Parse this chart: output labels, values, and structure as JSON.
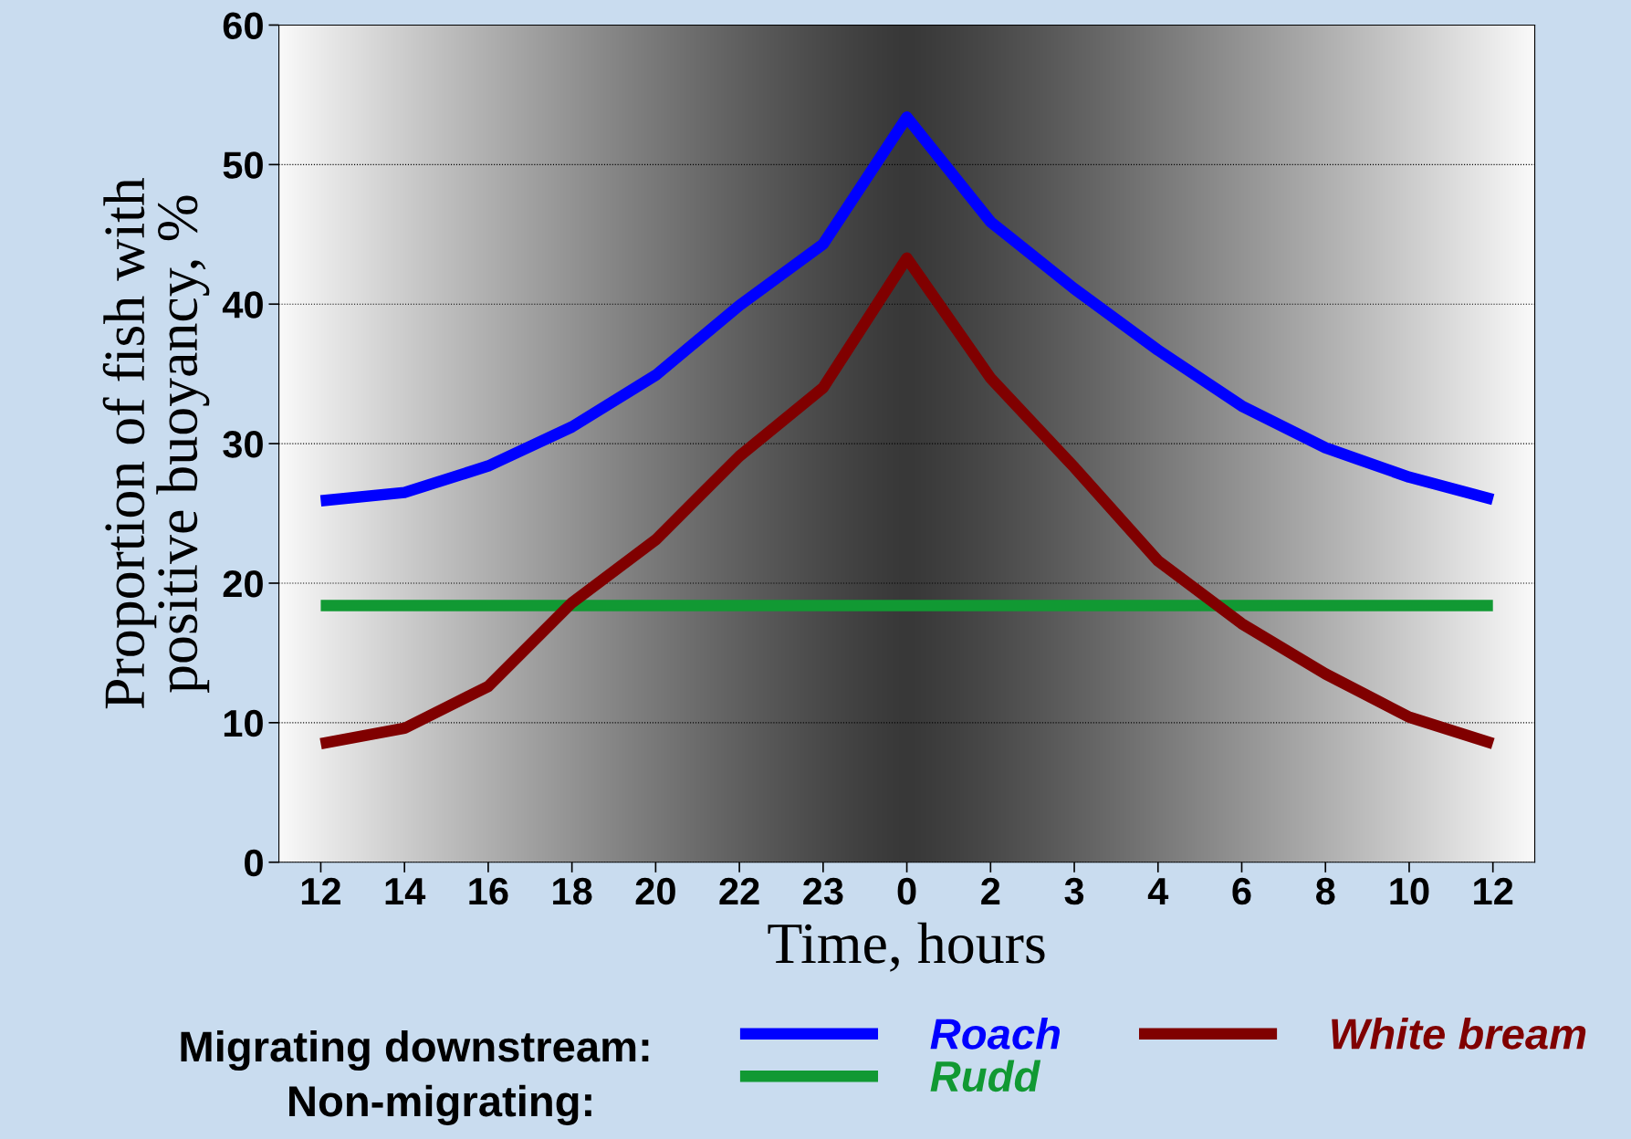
{
  "chart_data": {
    "type": "line",
    "xlabel": "Time, hours",
    "ylabel": "Proportion of fish with\npositive buoyancy, %",
    "categories": [
      "12",
      "14",
      "16",
      "18",
      "20",
      "22",
      "23",
      "0",
      "2",
      "3",
      "4",
      "6",
      "8",
      "10",
      "12"
    ],
    "series": [
      {
        "name": "Roach",
        "color": "#0000ff",
        "values": [
          25.9,
          26.5,
          28.4,
          31.2,
          34.9,
          39.9,
          44.3,
          53.4,
          45.9,
          41.1,
          36.7,
          32.7,
          29.7,
          27.6,
          26.0
        ]
      },
      {
        "name": "Rudd",
        "color": "#119933",
        "values": [
          18.4,
          18.4,
          18.4,
          18.4,
          18.4,
          18.4,
          18.4,
          18.4,
          18.4,
          18.4,
          18.4,
          18.4,
          18.4,
          18.4,
          18.4
        ]
      },
      {
        "name": "White bream",
        "color": "#800000",
        "values": [
          8.5,
          9.6,
          12.6,
          18.6,
          23.1,
          29.1,
          34.0,
          43.3,
          34.7,
          28.3,
          21.6,
          17.1,
          13.5,
          10.4,
          8.5
        ]
      }
    ],
    "ylim": [
      0,
      60
    ],
    "yticks": [
      0,
      10,
      20,
      30,
      40,
      50,
      60
    ],
    "grid": "y",
    "legend": "bottom",
    "marker": "none",
    "line_style": "solid",
    "annotations": [
      "Migrating downstream:",
      "Non-migrating:"
    ]
  }
}
